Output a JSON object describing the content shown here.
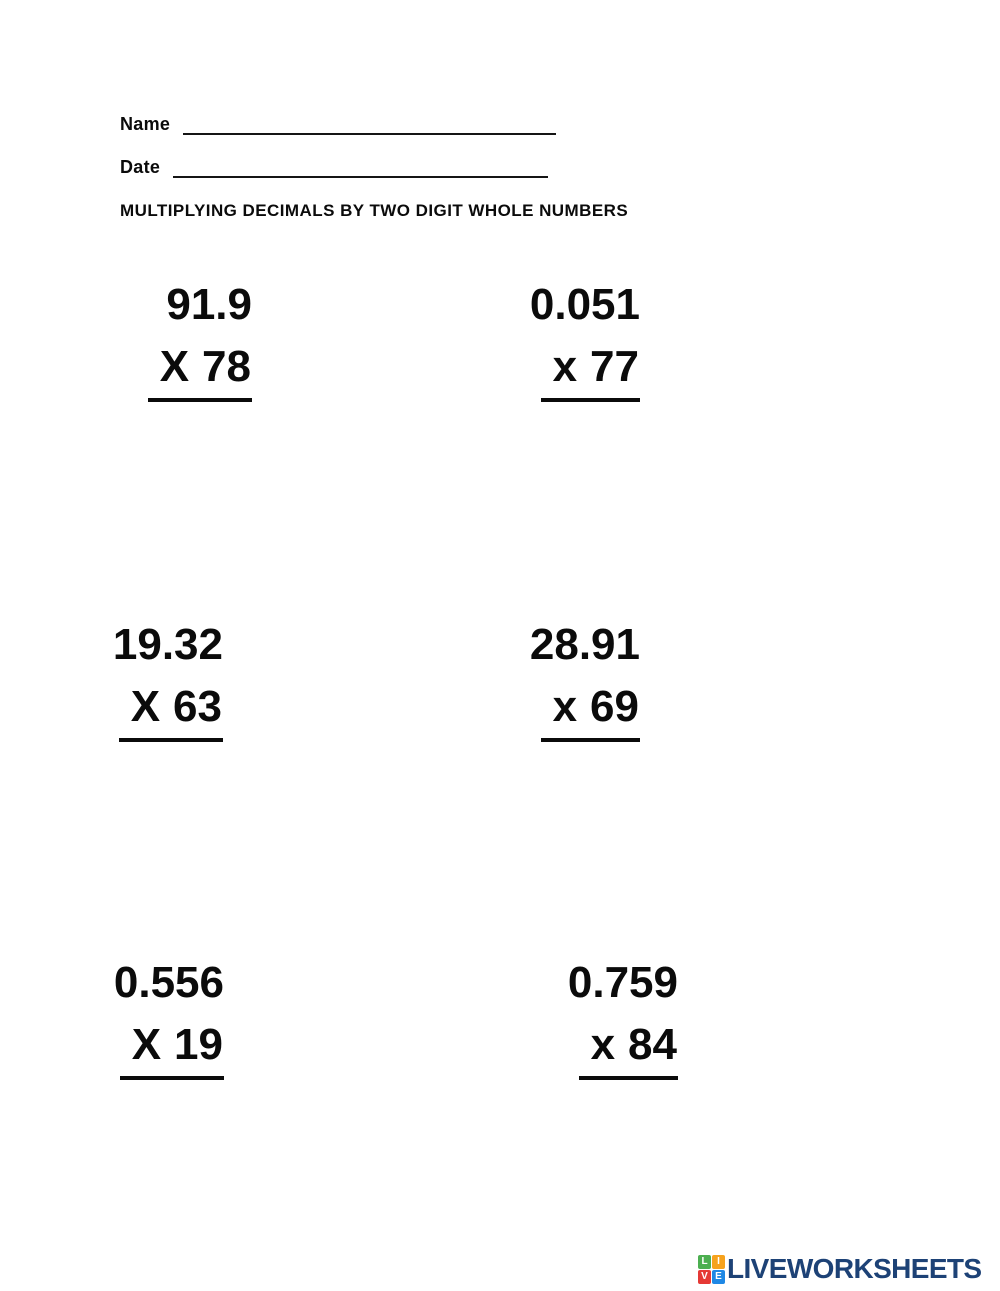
{
  "header": {
    "name_label": "Name",
    "date_label": "Date",
    "title": "MULTIPLYING DECIMALS BY TWO DIGIT WHOLE NUMBERS"
  },
  "problems": [
    {
      "value": "91.9",
      "op": "X",
      "by": "78"
    },
    {
      "value": "0.051",
      "op": "x",
      "by": "77"
    },
    {
      "value": "19.32",
      "op": "X",
      "by": "63"
    },
    {
      "value": "28.91",
      "op": "x",
      "by": "69"
    },
    {
      "value": "0.556",
      "op": "X",
      "by": "19"
    },
    {
      "value": "0.759",
      "op": "x",
      "by": "84"
    }
  ],
  "footer": {
    "brand": "LIVEWORKSHEETS",
    "brand_color": "#1d4276",
    "logo_cells": [
      {
        "letter": "L",
        "color": "#4caf50"
      },
      {
        "letter": "I",
        "color": "#f6a21d"
      },
      {
        "letter": "V",
        "color": "#e53935"
      },
      {
        "letter": "E",
        "color": "#1e88e5"
      }
    ]
  }
}
